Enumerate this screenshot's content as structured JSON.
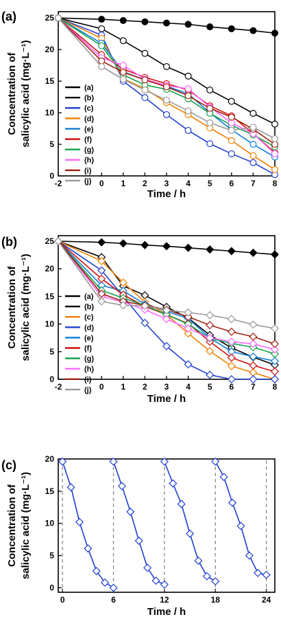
{
  "chart_data": [
    {
      "panel_label": "(a)",
      "type": "line",
      "xlabel": "Time / h",
      "ylabel_line1": "Concentration of",
      "ylabel_line2": "salicylic acid (mg·L⁻¹)",
      "xlim": [
        -2,
        8
      ],
      "ylim": [
        0,
        26
      ],
      "xticks": [
        -2,
        0,
        1,
        2,
        3,
        4,
        5,
        6,
        7,
        8
      ],
      "yticks": [
        0,
        5,
        10,
        15,
        20,
        25
      ],
      "x": [
        -2,
        0,
        1,
        2,
        3,
        4,
        5,
        6,
        7,
        8
      ],
      "legend_position": "left",
      "series": [
        {
          "name": "(a)",
          "color": "#000000",
          "marker": "circle",
          "filled": true,
          "values": [
            25,
            24.8,
            24.6,
            24.4,
            24.2,
            24.0,
            23.6,
            23.3,
            23.0,
            22.6
          ]
        },
        {
          "name": "(b)",
          "color": "#000000",
          "marker": "circle",
          "filled": false,
          "values": [
            25,
            23.3,
            21.4,
            19.4,
            17.3,
            15.8,
            13.6,
            11.8,
            9.9,
            8.2
          ]
        },
        {
          "name": "(c)",
          "color": "#1f3fcf",
          "marker": "circle",
          "filled": false,
          "values": [
            25,
            22.3,
            15.0,
            12.4,
            9.7,
            7.2,
            5.1,
            3.5,
            2.1,
            0.2
          ]
        },
        {
          "name": "(d)",
          "color": "#f07f00",
          "marker": "circle",
          "filled": false,
          "values": [
            25,
            21.8,
            15.4,
            13.8,
            11.6,
            9.7,
            7.6,
            5.6,
            3.2,
            1.0
          ]
        },
        {
          "name": "(e)",
          "color": "#0e7dd6",
          "marker": "circle",
          "filled": false,
          "values": [
            25,
            21.0,
            16.5,
            15.2,
            14.2,
            13.0,
            10.0,
            7.3,
            5.0,
            3.0
          ]
        },
        {
          "name": "(f)",
          "color": "#d01010",
          "marker": "circle",
          "filled": false,
          "values": [
            25,
            19.2,
            16.9,
            15.6,
            14.6,
            13.6,
            11.1,
            9.5,
            6.7,
            3.7
          ]
        },
        {
          "name": "(g)",
          "color": "#12a04a",
          "marker": "circle",
          "filled": false,
          "values": [
            25,
            20.6,
            16.0,
            14.4,
            13.7,
            12.2,
            9.9,
            8.0,
            6.5,
            4.6
          ]
        },
        {
          "name": "(h)",
          "color": "#ff66ff",
          "marker": "circle",
          "filled": false,
          "values": [
            25,
            18.7,
            17.5,
            15.3,
            14.3,
            13.8,
            10.9,
            8.4,
            6.7,
            3.5
          ]
        },
        {
          "name": "(i)",
          "color": "#a02010",
          "marker": "circle",
          "filled": false,
          "values": [
            25,
            18.2,
            16.4,
            15.2,
            14.1,
            12.7,
            10.7,
            9.3,
            7.4,
            5.0
          ]
        },
        {
          "name": "(j)",
          "color": "#999999",
          "marker": "circle",
          "filled": false,
          "values": [
            25,
            17.3,
            15.3,
            13.6,
            12.0,
            10.3,
            8.4,
            7.2,
            7.7,
            5.9
          ]
        }
      ]
    },
    {
      "panel_label": "(b)",
      "type": "line",
      "xlabel": "Time / h",
      "ylabel_line1": "Concentration of",
      "ylabel_line2": "salicylic acid (mg·L⁻¹)",
      "xlim": [
        -2,
        8
      ],
      "ylim": [
        0,
        26
      ],
      "xticks": [
        -2,
        0,
        1,
        2,
        3,
        4,
        5,
        6,
        7,
        8
      ],
      "yticks": [
        0,
        5,
        10,
        15,
        20,
        25
      ],
      "x": [
        -2,
        0,
        1,
        2,
        3,
        4,
        5,
        6,
        7,
        8
      ],
      "legend_position": "left",
      "series": [
        {
          "name": "(a)",
          "color": "#000000",
          "marker": "diamond",
          "filled": true,
          "values": [
            25,
            24.8,
            24.6,
            24.3,
            24.1,
            23.8,
            23.5,
            23.2,
            22.9,
            22.6
          ]
        },
        {
          "name": "(b)",
          "color": "#000000",
          "marker": "diamond",
          "filled": false,
          "values": [
            25,
            22.1,
            16.9,
            15.2,
            13.1,
            11.1,
            8.0,
            5.7,
            4.0,
            2.6
          ]
        },
        {
          "name": "(c)",
          "color": "#f07f00",
          "marker": "diamond",
          "filled": false,
          "values": [
            25,
            21.4,
            17.5,
            14.0,
            11.7,
            8.3,
            5.1,
            2.4,
            1.2,
            0.0
          ]
        },
        {
          "name": "(d)",
          "color": "#1f3fcf",
          "marker": "diamond",
          "filled": false,
          "values": [
            25,
            19.7,
            15.0,
            10.2,
            6.0,
            2.7,
            0.8,
            0.0,
            0.0,
            0.0
          ]
        },
        {
          "name": "(e)",
          "color": "#0e7dd6",
          "marker": "diamond",
          "filled": false,
          "values": [
            25,
            17.0,
            16.0,
            13.6,
            12.3,
            11.0,
            7.5,
            5.0,
            4.1,
            3.3
          ]
        },
        {
          "name": "(f)",
          "color": "#d01010",
          "marker": "diamond",
          "filled": false,
          "values": [
            25,
            18.2,
            15.3,
            13.2,
            11.7,
            10.1,
            6.8,
            3.9,
            2.5,
            1.4
          ]
        },
        {
          "name": "(g)",
          "color": "#12a04a",
          "marker": "diamond",
          "filled": false,
          "values": [
            25,
            16.1,
            14.7,
            13.4,
            11.7,
            10.0,
            7.4,
            6.5,
            5.8,
            4.6
          ]
        },
        {
          "name": "(h)",
          "color": "#ff66ff",
          "marker": "diamond",
          "filled": false,
          "values": [
            25,
            15.0,
            14.0,
            12.6,
            10.9,
            9.2,
            7.5,
            6.8,
            6.4,
            5.4
          ]
        },
        {
          "name": "(i)",
          "color": "#a02010",
          "marker": "diamond",
          "filled": false,
          "values": [
            25,
            15.5,
            14.1,
            13.4,
            12.6,
            11.3,
            9.8,
            8.6,
            7.7,
            6.4
          ]
        },
        {
          "name": "(j)",
          "color": "#999999",
          "marker": "diamond",
          "filled": false,
          "values": [
            25,
            14.1,
            13.4,
            13.3,
            12.5,
            12.1,
            11.6,
            10.9,
            9.9,
            9.2
          ]
        }
      ]
    },
    {
      "panel_label": "(c)",
      "type": "line",
      "xlabel": "Time / h",
      "ylabel_line1": "Concentration of",
      "ylabel_line2": "salicylic acid (mg·L⁻¹)",
      "xlim": [
        -0.5,
        25
      ],
      "ylim": [
        -0.7,
        20
      ],
      "xticks": [
        0,
        6,
        12,
        18,
        24
      ],
      "yticks": [
        0,
        5,
        10,
        15,
        20
      ],
      "cycle_dividers": [
        0,
        6,
        12,
        18,
        24
      ],
      "cycles": [
        {
          "color": "#1f3fcf",
          "x": [
            0,
            1,
            2,
            3,
            4,
            5,
            6
          ],
          "values": [
            19.6,
            15.6,
            10.2,
            6.1,
            2.6,
            0.8,
            0.0
          ]
        },
        {
          "color": "#1f3fcf",
          "x": [
            6,
            7,
            8,
            9,
            10,
            11,
            12
          ],
          "values": [
            19.6,
            15.8,
            11.8,
            7.3,
            3.1,
            1.1,
            0.5
          ]
        },
        {
          "color": "#1f3fcf",
          "x": [
            12,
            13,
            14,
            15,
            16,
            17,
            18
          ],
          "values": [
            19.6,
            16.2,
            13.0,
            8.4,
            4.2,
            1.8,
            1.0
          ]
        },
        {
          "color": "#1f3fcf",
          "x": [
            18,
            19,
            20,
            21,
            22,
            23,
            24
          ],
          "values": [
            19.6,
            17.2,
            13.2,
            9.6,
            5.0,
            2.3,
            2.0
          ]
        }
      ]
    }
  ]
}
